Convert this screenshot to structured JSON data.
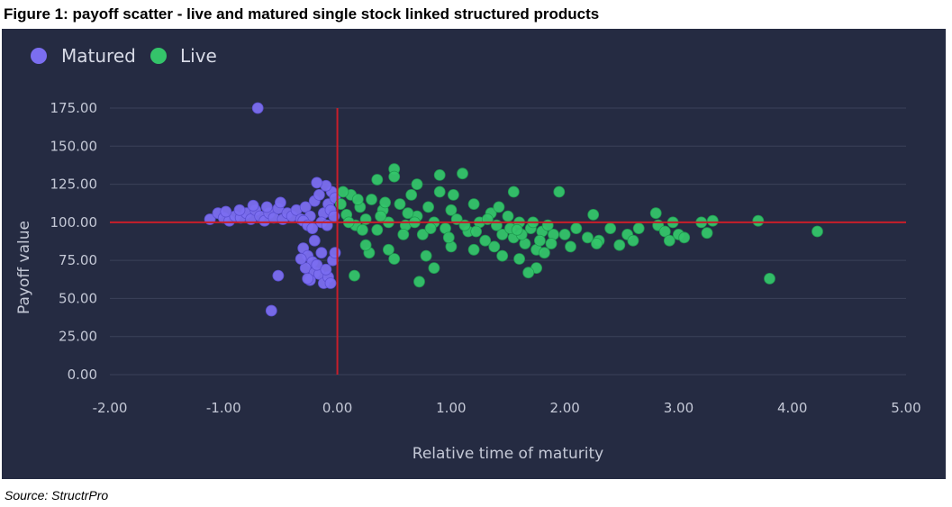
{
  "figure": {
    "title": "Figure 1: payoff scatter - live and matured single stock linked structured products",
    "source": "Source: StructrPro"
  },
  "colors": {
    "background": "#252b42",
    "grid": "#3b4259",
    "matured": "#7b6ef0",
    "live": "#34c46a",
    "reference": "#c81e2a",
    "text": "#c4c8d6"
  },
  "chart_data": {
    "type": "scatter",
    "xlabel": "Relative time of maturity",
    "ylabel": "Payoff value",
    "xlim": [
      -2.0,
      5.0
    ],
    "ylim": [
      0.0,
      175.0
    ],
    "x_ticks": [
      "-2.00",
      "-1.00",
      "0.00",
      "1.00",
      "2.00",
      "3.00",
      "4.00",
      "5.00"
    ],
    "y_ticks": [
      "0.00",
      "25.00",
      "50.00",
      "75.00",
      "100.00",
      "125.00",
      "150.00",
      "175.00"
    ],
    "grid": "horizontal",
    "legend": "top-left",
    "reference_lines": {
      "x": 0.0,
      "y": 100.0
    },
    "series": [
      {
        "name": "Matured",
        "color": "#7b6ef0",
        "points": [
          [
            -0.7,
            175
          ],
          [
            -0.58,
            42
          ],
          [
            -0.52,
            65
          ],
          [
            -1.12,
            102
          ],
          [
            -1.05,
            106
          ],
          [
            -1.0,
            103
          ],
          [
            -0.95,
            101
          ],
          [
            -0.9,
            104
          ],
          [
            -0.85,
            103
          ],
          [
            -0.8,
            106
          ],
          [
            -0.76,
            102
          ],
          [
            -0.72,
            108
          ],
          [
            -0.68,
            104
          ],
          [
            -0.64,
            101
          ],
          [
            -0.6,
            106
          ],
          [
            -0.56,
            103
          ],
          [
            -0.52,
            109
          ],
          [
            -0.48,
            102
          ],
          [
            -0.44,
            106
          ],
          [
            -0.4,
            104
          ],
          [
            -0.36,
            108
          ],
          [
            -0.32,
            102
          ],
          [
            -0.28,
            110
          ],
          [
            -0.24,
            104
          ],
          [
            -0.2,
            114
          ],
          [
            -0.16,
            118
          ],
          [
            -0.12,
            106
          ],
          [
            -0.08,
            112
          ],
          [
            -0.05,
            120
          ],
          [
            -0.02,
            116
          ],
          [
            -0.1,
            124
          ],
          [
            -0.18,
            126
          ],
          [
            -0.06,
            108
          ],
          [
            -0.5,
            113
          ],
          [
            -0.62,
            110
          ],
          [
            -0.74,
            111
          ],
          [
            -0.86,
            108
          ],
          [
            -0.98,
            107
          ],
          [
            -0.3,
            101
          ],
          [
            -0.26,
            98
          ],
          [
            -0.22,
            96
          ],
          [
            -0.14,
            100
          ],
          [
            -0.03,
            104
          ],
          [
            -0.09,
            98
          ],
          [
            -0.3,
            83
          ],
          [
            -0.26,
            78
          ],
          [
            -0.22,
            74
          ],
          [
            -0.28,
            70
          ],
          [
            -0.2,
            67
          ],
          [
            -0.24,
            62
          ],
          [
            -0.16,
            66
          ],
          [
            -0.12,
            60
          ],
          [
            -0.08,
            64
          ],
          [
            -0.18,
            72
          ],
          [
            -0.14,
            80
          ],
          [
            -0.2,
            88
          ],
          [
            -0.04,
            75
          ],
          [
            -0.06,
            60
          ],
          [
            -0.1,
            69
          ],
          [
            -0.26,
            63
          ],
          [
            -0.32,
            76
          ],
          [
            -0.02,
            80
          ]
        ]
      },
      {
        "name": "Live",
        "color": "#34c46a",
        "points": [
          [
            0.03,
            112
          ],
          [
            0.08,
            105
          ],
          [
            0.12,
            118
          ],
          [
            0.16,
            98
          ],
          [
            0.2,
            110
          ],
          [
            0.25,
            102
          ],
          [
            0.3,
            115
          ],
          [
            0.35,
            95
          ],
          [
            0.4,
            108
          ],
          [
            0.45,
            100
          ],
          [
            0.5,
            135
          ],
          [
            0.5,
            130
          ],
          [
            0.55,
            112
          ],
          [
            0.6,
            98
          ],
          [
            0.65,
            118
          ],
          [
            0.7,
            104
          ],
          [
            0.75,
            92
          ],
          [
            0.8,
            110
          ],
          [
            0.85,
            100
          ],
          [
            0.9,
            120
          ],
          [
            0.95,
            96
          ],
          [
            1.0,
            108
          ],
          [
            1.05,
            102
          ],
          [
            1.1,
            132
          ],
          [
            1.15,
            94
          ],
          [
            1.2,
            112
          ],
          [
            1.25,
            100
          ],
          [
            1.3,
            88
          ],
          [
            1.35,
            106
          ],
          [
            1.4,
            98
          ],
          [
            1.45,
            92
          ],
          [
            1.5,
            104
          ],
          [
            1.55,
            90
          ],
          [
            1.6,
            100
          ],
          [
            1.65,
            86
          ],
          [
            1.7,
            96
          ],
          [
            1.75,
            82
          ],
          [
            1.8,
            94
          ],
          [
            1.85,
            98
          ],
          [
            1.9,
            92
          ],
          [
            1.95,
            120
          ],
          [
            1.55,
            120
          ],
          [
            0.7,
            125
          ],
          [
            0.35,
            128
          ],
          [
            0.9,
            131
          ],
          [
            0.15,
            65
          ],
          [
            0.28,
            80
          ],
          [
            0.45,
            82
          ],
          [
            0.5,
            76
          ],
          [
            0.72,
            61
          ],
          [
            0.85,
            70
          ],
          [
            0.78,
            78
          ],
          [
            1.0,
            84
          ],
          [
            1.2,
            82
          ],
          [
            1.45,
            78
          ],
          [
            1.6,
            76
          ],
          [
            1.75,
            70
          ],
          [
            1.68,
            67
          ],
          [
            1.82,
            80
          ],
          [
            2.05,
            84
          ],
          [
            2.0,
            92
          ],
          [
            2.1,
            96
          ],
          [
            2.2,
            90
          ],
          [
            2.25,
            105
          ],
          [
            2.3,
            88
          ],
          [
            2.4,
            96
          ],
          [
            2.48,
            85
          ],
          [
            2.55,
            92
          ],
          [
            2.6,
            88
          ],
          [
            2.65,
            96
          ],
          [
            2.8,
            106
          ],
          [
            2.82,
            98
          ],
          [
            2.88,
            94
          ],
          [
            2.92,
            88
          ],
          [
            2.95,
            100
          ],
          [
            3.0,
            92
          ],
          [
            3.05,
            90
          ],
          [
            3.2,
            100
          ],
          [
            3.3,
            101
          ],
          [
            3.25,
            93
          ],
          [
            3.7,
            101
          ],
          [
            3.8,
            63
          ],
          [
            4.22,
            94
          ],
          [
            2.28,
            86
          ],
          [
            0.1,
            100
          ],
          [
            0.22,
            95
          ],
          [
            0.38,
            104
          ],
          [
            0.58,
            92
          ],
          [
            0.62,
            106
          ],
          [
            0.82,
            96
          ],
          [
            1.02,
            118
          ],
          [
            1.12,
            98
          ],
          [
            1.22,
            94
          ],
          [
            1.32,
            102
          ],
          [
            1.42,
            110
          ],
          [
            1.52,
            96
          ],
          [
            1.62,
            92
          ],
          [
            1.72,
            100
          ],
          [
            1.78,
            88
          ],
          [
            0.05,
            120
          ],
          [
            0.18,
            115
          ],
          [
            0.42,
            113
          ],
          [
            0.68,
            100
          ],
          [
            0.98,
            90
          ],
          [
            1.38,
            84
          ],
          [
            1.58,
            95
          ],
          [
            1.88,
            86
          ],
          [
            0.25,
            85
          ]
        ]
      }
    ]
  }
}
